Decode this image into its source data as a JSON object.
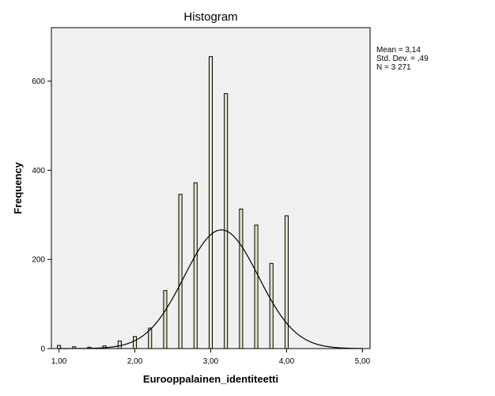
{
  "chart_data": {
    "type": "bar",
    "title": "Histogram",
    "xlabel": "Eurooppalainen_identiteetti",
    "ylabel": "Frequency",
    "xlim": [
      0.9,
      5.1
    ],
    "ylim": [
      0,
      720
    ],
    "x_ticks": [
      1.0,
      2.0,
      3.0,
      4.0,
      5.0
    ],
    "x_tick_labels": [
      "1,00",
      "2,00",
      "3,00",
      "4,00",
      "5,00"
    ],
    "y_ticks": [
      0,
      200,
      400,
      600
    ],
    "y_tick_labels": [
      "0",
      "200",
      "400",
      "600"
    ],
    "bin_width": 0.0425,
    "bins": [
      {
        "x": 1.0,
        "value": 7
      },
      {
        "x": 1.2,
        "value": 4
      },
      {
        "x": 1.4,
        "value": 3
      },
      {
        "x": 1.6,
        "value": 6
      },
      {
        "x": 1.8,
        "value": 17
      },
      {
        "x": 2.0,
        "value": 27
      },
      {
        "x": 2.2,
        "value": 46
      },
      {
        "x": 2.4,
        "value": 130
      },
      {
        "x": 2.6,
        "value": 346
      },
      {
        "x": 2.8,
        "value": 372
      },
      {
        "x": 3.0,
        "value": 655
      },
      {
        "x": 3.2,
        "value": 572
      },
      {
        "x": 3.4,
        "value": 313
      },
      {
        "x": 3.6,
        "value": 277
      },
      {
        "x": 3.8,
        "value": 191
      },
      {
        "x": 4.0,
        "value": 298
      }
    ],
    "normal_curve": {
      "mean": 3.14,
      "sd": 0.49,
      "n": 3271,
      "bin_width": 0.1
    },
    "stats": [
      "Mean = 3,14",
      "Std. Dev. = ,49",
      "N = 3 271"
    ],
    "colors": {
      "bar_fill": "#e6e3c0",
      "bar_stroke": "#000000",
      "plot_bg": "#f0f0f0",
      "curve": "#000000"
    }
  }
}
